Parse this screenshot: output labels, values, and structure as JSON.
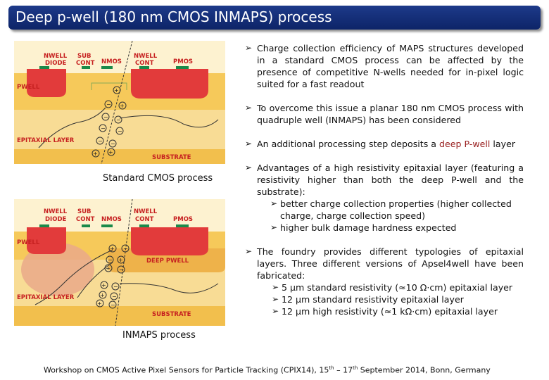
{
  "slide": {
    "title": "Deep p-well (180 nm CMOS INMAPS) process"
  },
  "diagram_top": {
    "labels": {
      "nwell_diode": [
        "NWELL",
        "DIODE"
      ],
      "sub_cont": [
        "SUB",
        "CONT"
      ],
      "nmos": "NMOS",
      "nwell_cont": [
        "NWELL",
        "CONT"
      ],
      "pmos": "PMOS",
      "pwell": "PWELL",
      "epitaxial": "EPITAXIAL LAYER",
      "substrate": "SUBSTRATE"
    },
    "caption": "Standard CMOS process"
  },
  "diagram_bottom": {
    "labels": {
      "nwell_diode": [
        "NWELL",
        "DIODE"
      ],
      "sub_cont": [
        "SUB",
        "CONT"
      ],
      "nmos": "NMOS",
      "nwell_cont": [
        "NWELL",
        "CONT"
      ],
      "pmos": "PMOS",
      "pwell": "PWELL",
      "deep_pwell": "DEEP PWELL",
      "epitaxial": "EPITAXIAL LAYER",
      "substrate": "SUBSTRATE"
    },
    "caption": "INMAPS process"
  },
  "bullets": {
    "b1": "Charge collection efficiency of MAPS structures developed in a standard CMOS process can be affected by the presence of competitive N-wells needed for in-pixel logic suited for a fast readout",
    "b2": "To overcome this issue a planar 180 nm CMOS process with quadruple well (INMAPS) has been considered",
    "b3_pre": "An additional processing step deposits a ",
    "b3_hl": "deep P-well",
    "b3_post": " layer",
    "b4": "Advantages of a high resistivity epitaxial layer (featuring a resistivity higher than both the deep P-well and the substrate):",
    "b4_sub1": "better charge collection properties (higher collected charge, charge collection speed)",
    "b4_sub2": "higher bulk damage hardness expected",
    "b5": "The foundry provides different typologies of epitaxial layers. Three different versions of Apsel4well have been fabricated:",
    "b5_sub1": "5 µm standard resistivity (≈10 Ω·cm) epitaxial layer",
    "b5_sub2": "12 µm standard resistivity epitaxial layer",
    "b5_sub3": "12 µm high resistivity (≈1 kΩ·cm) epitaxial layer"
  },
  "footer": {
    "pre": "Workshop on CMOS Active Pixel Sensors for Particle Tracking (CPIX14), 15",
    "sup1": "th",
    "mid": " – 17",
    "sup2": "th",
    "post": " September 2014, Bonn, Germany"
  },
  "colors": {
    "title_bar": "#1d3a8a",
    "nwell": "#e33a3a",
    "pwell": "#f3c24f",
    "epitaxial": "#f7dc92",
    "substrate": "#f3c24f",
    "deep_pwell": "#f0b84a",
    "label": "#c62020"
  }
}
